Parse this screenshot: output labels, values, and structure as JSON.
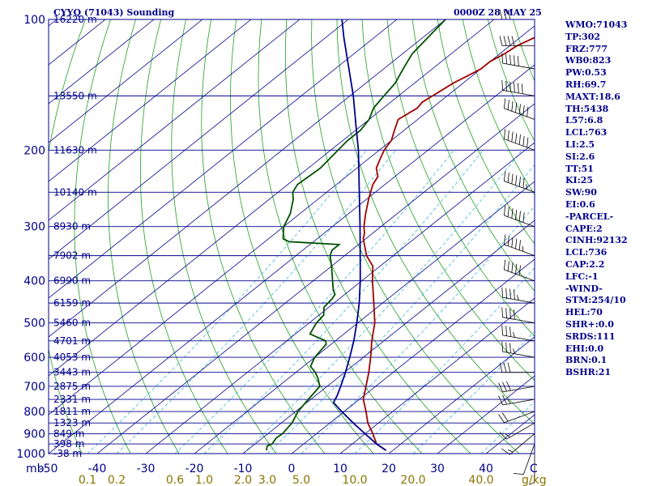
{
  "header": {
    "title": "CYYQ (71043) Sounding",
    "timestamp": "0000Z 28 MAY 25"
  },
  "params": [
    "WMO:71043",
    "TP:302",
    "FRZ:777",
    "WB0:823",
    "PW:0.53",
    "RH:69.7",
    "MAXT:18.6",
    "TH:5438",
    "L57:6.8",
    "LCL:763",
    "LI:2.5",
    "SI:2.6",
    "TT:51",
    "KI:25",
    "SW:90",
    "EI:0.6",
    "-PARCEL-",
    "CAPE:2",
    "CINH:92132",
    "LCL:736",
    "CAP:2.2",
    "LFC:-1",
    "-WIND-",
    "STM:254/10",
    "HEL:70",
    "SHR+:0.0",
    "SRDS:111",
    "EHI:0.0",
    "BRN:0.1",
    "BSHR:21"
  ],
  "chart_data": {
    "type": "line",
    "chart_kind": "skew-T log-P sounding",
    "y_scale": "log",
    "y_axis_units": "mb",
    "x_axis_units": "C",
    "mixing_ratio_units": "g/kg",
    "p_range": [
      1000,
      100
    ],
    "t_range": [
      -50,
      50
    ],
    "pressure_ticks": [
      100,
      200,
      300,
      400,
      500,
      600,
      700,
      800,
      900,
      1000
    ],
    "temperature_ticks": [
      -50,
      -40,
      -30,
      -20,
      -10,
      0,
      10,
      20,
      30,
      40
    ],
    "temperature_labels": [
      "-50",
      "-40",
      "-30",
      "-20",
      "-10",
      "0",
      "10",
      "20",
      "30",
      "40"
    ],
    "mixing_ratio_ticks": [
      {
        "label": "0.1",
        "t": -42
      },
      {
        "label": "0.2",
        "t": -36
      },
      {
        "label": "0.6",
        "t": -24
      },
      {
        "label": "1.0",
        "t": -18
      },
      {
        "label": "2.0",
        "t": -10
      },
      {
        "label": "3.0",
        "t": -5
      },
      {
        "label": "5.0",
        "t": 2
      },
      {
        "label": "10.0",
        "t": 13
      },
      {
        "label": "20.0",
        "t": 25
      },
      {
        "label": "40.0",
        "t": 39
      }
    ],
    "heights": [
      {
        "p": 100,
        "label": "16220 m"
      },
      {
        "p": 150,
        "label": "13550 m"
      },
      {
        "p": 200,
        "label": "11630 m"
      },
      {
        "p": 250,
        "label": "10140 m"
      },
      {
        "p": 300,
        "label": "8930 m"
      },
      {
        "p": 350,
        "label": "7902 m"
      },
      {
        "p": 400,
        "label": "6990 m"
      },
      {
        "p": 450,
        "label": "6159 m"
      },
      {
        "p": 500,
        "label": "5460 m"
      },
      {
        "p": 550,
        "label": "4701 m"
      },
      {
        "p": 600,
        "label": "4053 m"
      },
      {
        "p": 650,
        "label": "3443 m"
      },
      {
        "p": 700,
        "label": "2875 m"
      },
      {
        "p": 750,
        "label": "2331 m"
      },
      {
        "p": 800,
        "label": "1811 m"
      },
      {
        "p": 850,
        "label": "1323 m"
      },
      {
        "p": 900,
        "label": "849 m"
      },
      {
        "p": 950,
        "label": "398 m"
      },
      {
        "p": 1000,
        "label": "-38 m"
      }
    ],
    "series": [
      {
        "role": "temperature",
        "color": "#a00000",
        "points": [
          [
            983,
            18.6
          ],
          [
            950,
            15.0
          ],
          [
            900,
            11.6
          ],
          [
            850,
            7.8
          ],
          [
            800,
            4.5
          ],
          [
            750,
            0.8
          ],
          [
            700,
            -2.0
          ],
          [
            650,
            -5.0
          ],
          [
            600,
            -8.5
          ],
          [
            550,
            -12.5
          ],
          [
            500,
            -16.5
          ],
          [
            450,
            -21.8
          ],
          [
            400,
            -27.8
          ],
          [
            370,
            -31.5
          ],
          [
            350,
            -35.5
          ],
          [
            320,
            -40.5
          ],
          [
            310,
            -41.8
          ],
          [
            300,
            -43.5
          ],
          [
            280,
            -46.5
          ],
          [
            260,
            -49.5
          ],
          [
            250,
            -51.0
          ],
          [
            240,
            -52.5
          ],
          [
            230,
            -53.5
          ],
          [
            220,
            -56.0
          ],
          [
            210,
            -57.5
          ],
          [
            200,
            -59.0
          ],
          [
            190,
            -60.0
          ],
          [
            180,
            -62.0
          ],
          [
            170,
            -64.0
          ],
          [
            160,
            -63.0
          ],
          [
            155,
            -63.5
          ],
          [
            150,
            -63.0
          ],
          [
            140,
            -62.0
          ],
          [
            135,
            -61.0
          ],
          [
            130,
            -60.0
          ],
          [
            125,
            -60.0
          ],
          [
            120,
            -59.0
          ],
          [
            115,
            -58.5
          ],
          [
            110,
            -57.0
          ],
          [
            105,
            -55.0
          ],
          [
            100,
            -53.0
          ]
        ]
      },
      {
        "role": "dewpoint",
        "color": "#005000",
        "points": [
          [
            983,
            -6.0
          ],
          [
            960,
            -7.0
          ],
          [
            950,
            -6.5
          ],
          [
            920,
            -7.2
          ],
          [
            900,
            -7.0
          ],
          [
            850,
            -7.8
          ],
          [
            800,
            -9.5
          ],
          [
            750,
            -10.5
          ],
          [
            700,
            -11.5
          ],
          [
            670,
            -14.0
          ],
          [
            650,
            -16.0
          ],
          [
            630,
            -18.5
          ],
          [
            610,
            -19.5
          ],
          [
            600,
            -20.0
          ],
          [
            580,
            -20.5
          ],
          [
            560,
            -21.0
          ],
          [
            550,
            -22.0
          ],
          [
            540,
            -24.5
          ],
          [
            530,
            -27.0
          ],
          [
            510,
            -28.0
          ],
          [
            500,
            -28.5
          ],
          [
            480,
            -29.0
          ],
          [
            460,
            -31.0
          ],
          [
            440,
            -31.5
          ],
          [
            430,
            -32.0
          ],
          [
            420,
            -33.5
          ],
          [
            400,
            -36.0
          ],
          [
            370,
            -40.0
          ],
          [
            350,
            -43.0
          ],
          [
            340,
            -44.0
          ],
          [
            330,
            -44.0
          ],
          [
            325,
            -55.0
          ],
          [
            320,
            -57.0
          ],
          [
            300,
            -60.0
          ],
          [
            280,
            -62.0
          ],
          [
            260,
            -65.0
          ],
          [
            250,
            -67.0
          ],
          [
            240,
            -68.0
          ],
          [
            220,
            -67.5
          ],
          [
            200,
            -68.5
          ],
          [
            190,
            -69.0
          ],
          [
            180,
            -69.0
          ],
          [
            170,
            -70.0
          ],
          [
            160,
            -72.0
          ],
          [
            150,
            -73.0
          ],
          [
            140,
            -74.0
          ],
          [
            130,
            -76.0
          ],
          [
            120,
            -78.0
          ],
          [
            110,
            -79.0
          ],
          [
            100,
            -80.0
          ]
        ]
      },
      {
        "role": "parcel",
        "color": "#00008b",
        "points": [
          [
            983,
            18.6
          ],
          [
            950,
            15.0
          ],
          [
            900,
            10.0
          ],
          [
            850,
            4.8
          ],
          [
            800,
            -0.5
          ],
          [
            763,
            -4.5
          ],
          [
            736,
            -5.5
          ],
          [
            700,
            -7.2
          ],
          [
            650,
            -9.8
          ],
          [
            600,
            -12.8
          ],
          [
            550,
            -16.2
          ],
          [
            500,
            -20.2
          ],
          [
            450,
            -24.8
          ],
          [
            400,
            -30.3
          ],
          [
            350,
            -36.8
          ],
          [
            300,
            -44.3
          ],
          [
            250,
            -53.3
          ],
          [
            200,
            -64.3
          ],
          [
            175,
            -71.3
          ],
          [
            150,
            -79.3
          ],
          [
            125,
            -89.3
          ],
          [
            110,
            -96.3
          ],
          [
            100,
            -101.3
          ]
        ]
      }
    ],
    "winds": [
      {
        "p": 980,
        "dir": 180,
        "kt": 5
      },
      {
        "p": 950,
        "dir": 200,
        "kt": 10
      },
      {
        "p": 900,
        "dir": 230,
        "kt": 15
      },
      {
        "p": 850,
        "dir": 240,
        "kt": 15
      },
      {
        "p": 800,
        "dir": 250,
        "kt": 20
      },
      {
        "p": 750,
        "dir": 260,
        "kt": 25
      },
      {
        "p": 700,
        "dir": 260,
        "kt": 30
      },
      {
        "p": 650,
        "dir": 270,
        "kt": 30
      },
      {
        "p": 600,
        "dir": 280,
        "kt": 35
      },
      {
        "p": 550,
        "dir": 280,
        "kt": 35
      },
      {
        "p": 500,
        "dir": 280,
        "kt": 40
      },
      {
        "p": 450,
        "dir": 280,
        "kt": 45
      },
      {
        "p": 400,
        "dir": 290,
        "kt": 50
      },
      {
        "p": 350,
        "dir": 290,
        "kt": 55
      },
      {
        "p": 300,
        "dir": 290,
        "kt": 60
      },
      {
        "p": 250,
        "dir": 290,
        "kt": 65
      },
      {
        "p": 200,
        "dir": 290,
        "kt": 70
      },
      {
        "p": 170,
        "dir": 290,
        "kt": 70
      },
      {
        "p": 150,
        "dir": 280,
        "kt": 60
      },
      {
        "p": 130,
        "dir": 280,
        "kt": 50
      },
      {
        "p": 115,
        "dir": 270,
        "kt": 40
      },
      {
        "p": 100,
        "dir": 270,
        "kt": 30
      }
    ]
  }
}
